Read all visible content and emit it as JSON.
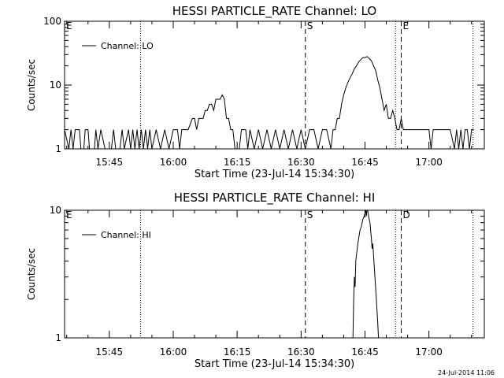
{
  "chart_data": [
    {
      "type": "line",
      "title": "HESSI PARTICLE_RATE Channel: LO",
      "xlabel": "Start Time (23-Jul-14 15:34:30)",
      "ylabel": "Counts/sec",
      "yscale": "log",
      "ylim": [
        1,
        100
      ],
      "xlim": [
        "15:34:30",
        "17:13:00"
      ],
      "x_ticks": [
        "15:45",
        "16:00",
        "16:15",
        "16:30",
        "16:45",
        "17:00"
      ],
      "y_ticks": [
        "1",
        "10",
        "100"
      ],
      "legend": {
        "position": "top-left",
        "entries": [
          "Channel: LO"
        ]
      },
      "markers": [
        {
          "label": "E",
          "time": "15:34:30",
          "style": "none"
        },
        {
          "label": "",
          "time": "15:52:20",
          "style": "dotted"
        },
        {
          "label": "S",
          "time": "16:31:00",
          "style": "dashed"
        },
        {
          "label": "",
          "time": "16:52:10",
          "style": "dotted"
        },
        {
          "label": "E",
          "time": "16:53:30",
          "style": "dashed"
        },
        {
          "label": "",
          "time": "17:10:20",
          "style": "dotted"
        }
      ],
      "series": [
        {
          "name": "Channel: LO",
          "points": [
            [
              "15:34:30",
              2
            ],
            [
              "15:35:30",
              1
            ],
            [
              "15:36:00",
              2
            ],
            [
              "15:36:30",
              1
            ],
            [
              "15:37:00",
              2
            ],
            [
              "15:38:00",
              2
            ],
            [
              "15:38:20",
              1
            ],
            [
              "15:39:00",
              1
            ],
            [
              "15:39:20",
              2
            ],
            [
              "15:40:00",
              2
            ],
            [
              "15:40:20",
              1
            ],
            [
              "15:41:30",
              1
            ],
            [
              "15:41:50",
              2
            ],
            [
              "15:42:20",
              1
            ],
            [
              "15:43:00",
              2
            ],
            [
              "15:44:00",
              1
            ],
            [
              "15:45:30",
              1
            ],
            [
              "15:46:00",
              2
            ],
            [
              "15:46:30",
              1
            ],
            [
              "15:47:30",
              1
            ],
            [
              "15:48:00",
              2
            ],
            [
              "15:48:30",
              1
            ],
            [
              "15:49:30",
              2
            ],
            [
              "15:50:00",
              1
            ],
            [
              "15:50:30",
              2
            ],
            [
              "15:51:00",
              1
            ],
            [
              "15:51:30",
              2
            ],
            [
              "15:52:00",
              1
            ],
            [
              "15:52:30",
              2
            ],
            [
              "15:53:00",
              1
            ],
            [
              "15:53:30",
              2
            ],
            [
              "15:54:00",
              1
            ],
            [
              "15:54:30",
              2
            ],
            [
              "15:55:00",
              1
            ],
            [
              "15:56:00",
              2
            ],
            [
              "15:57:00",
              1
            ],
            [
              "15:58:00",
              2
            ],
            [
              "15:59:00",
              1
            ],
            [
              "16:00:00",
              2
            ],
            [
              "16:01:00",
              2
            ],
            [
              "16:01:30",
              1
            ],
            [
              "16:02:00",
              2
            ],
            [
              "16:03:30",
              2
            ],
            [
              "16:04:30",
              3
            ],
            [
              "16:05:00",
              3
            ],
            [
              "16:05:30",
              2
            ],
            [
              "16:06:00",
              3
            ],
            [
              "16:07:00",
              3
            ],
            [
              "16:07:30",
              4
            ],
            [
              "16:08:00",
              4
            ],
            [
              "16:08:30",
              5
            ],
            [
              "16:09:00",
              5
            ],
            [
              "16:09:30",
              4
            ],
            [
              "16:10:00",
              6
            ],
            [
              "16:11:00",
              6
            ],
            [
              "16:11:30",
              7
            ],
            [
              "16:12:00",
              6
            ],
            [
              "16:12:30",
              3
            ],
            [
              "16:13:00",
              3
            ],
            [
              "16:13:30",
              2
            ],
            [
              "16:14:00",
              2
            ],
            [
              "16:14:30",
              1
            ],
            [
              "16:15:30",
              1
            ],
            [
              "16:16:00",
              2
            ],
            [
              "16:17:00",
              2
            ],
            [
              "16:17:30",
              1
            ],
            [
              "16:18:00",
              2
            ],
            [
              "16:19:00",
              1
            ],
            [
              "16:20:00",
              2
            ],
            [
              "16:21:00",
              1
            ],
            [
              "16:22:00",
              2
            ],
            [
              "16:23:00",
              1
            ],
            [
              "16:24:00",
              2
            ],
            [
              "16:25:00",
              1
            ],
            [
              "16:26:00",
              2
            ],
            [
              "16:27:00",
              1
            ],
            [
              "16:28:00",
              2
            ],
            [
              "16:29:00",
              1
            ],
            [
              "16:30:00",
              2
            ],
            [
              "16:31:00",
              1
            ],
            [
              "16:32:00",
              2
            ],
            [
              "16:33:00",
              2
            ],
            [
              "16:34:00",
              1
            ],
            [
              "16:35:00",
              2
            ],
            [
              "16:36:00",
              2
            ],
            [
              "16:37:00",
              1
            ],
            [
              "16:37:30",
              2
            ],
            [
              "16:38:00",
              2
            ],
            [
              "16:38:30",
              3
            ],
            [
              "16:39:00",
              3
            ],
            [
              "16:39:30",
              5
            ],
            [
              "16:40:00",
              7
            ],
            [
              "16:40:30",
              9
            ],
            [
              "16:41:00",
              11
            ],
            [
              "16:41:30",
              13
            ],
            [
              "16:42:00",
              15
            ],
            [
              "16:42:30",
              18
            ],
            [
              "16:43:00",
              20
            ],
            [
              "16:43:30",
              23
            ],
            [
              "16:44:00",
              25
            ],
            [
              "16:44:30",
              27
            ],
            [
              "16:45:00",
              27
            ],
            [
              "16:45:30",
              28
            ],
            [
              "16:46:00",
              26
            ],
            [
              "16:46:30",
              24
            ],
            [
              "16:47:00",
              20
            ],
            [
              "16:47:30",
              17
            ],
            [
              "16:48:00",
              12
            ],
            [
              "16:48:30",
              9
            ],
            [
              "16:49:00",
              6
            ],
            [
              "16:49:30",
              4
            ],
            [
              "16:50:00",
              5
            ],
            [
              "16:50:30",
              3
            ],
            [
              "16:51:00",
              3
            ],
            [
              "16:51:30",
              4
            ],
            [
              "16:52:00",
              3
            ],
            [
              "16:52:30",
              2
            ],
            [
              "16:53:00",
              2
            ],
            [
              "16:53:30",
              3
            ],
            [
              "16:54:00",
              2
            ],
            [
              "16:55:00",
              2
            ],
            [
              "16:56:00",
              2
            ],
            [
              "16:57:00",
              2
            ],
            [
              "16:58:00",
              2
            ],
            [
              "16:59:00",
              2
            ],
            [
              "17:00:00",
              2
            ],
            [
              "17:00:30",
              1
            ],
            [
              "17:01:00",
              2
            ],
            [
              "17:02:00",
              2
            ],
            [
              "17:03:00",
              2
            ],
            [
              "17:04:00",
              2
            ],
            [
              "17:05:00",
              2
            ],
            [
              "17:06:00",
              1
            ],
            [
              "17:06:30",
              2
            ],
            [
              "17:07:00",
              1
            ],
            [
              "17:07:30",
              2
            ],
            [
              "17:08:00",
              1
            ],
            [
              "17:08:30",
              2
            ],
            [
              "17:09:00",
              2
            ],
            [
              "17:09:30",
              1
            ],
            [
              "17:10:00",
              2
            ],
            [
              "17:10:30",
              2
            ]
          ]
        }
      ]
    },
    {
      "type": "line",
      "title": "HESSI PARTICLE_RATE Channel: HI",
      "xlabel": "Start Time (23-Jul-14 15:34:30)",
      "ylabel": "Counts/sec",
      "yscale": "log",
      "ylim": [
        1,
        10
      ],
      "xlim": [
        "15:34:30",
        "17:13:00"
      ],
      "x_ticks": [
        "15:45",
        "16:00",
        "16:15",
        "16:30",
        "16:45",
        "17:00"
      ],
      "y_ticks": [
        "1",
        "10"
      ],
      "legend": {
        "position": "top-left",
        "entries": [
          "Channel: HI"
        ]
      },
      "markers": [
        {
          "label": "E",
          "time": "15:34:30",
          "style": "none"
        },
        {
          "label": "",
          "time": "15:52:20",
          "style": "dotted"
        },
        {
          "label": "S",
          "time": "16:31:00",
          "style": "dashed"
        },
        {
          "label": "",
          "time": "16:52:10",
          "style": "dotted"
        },
        {
          "label": "D",
          "time": "16:53:30",
          "style": "dashed"
        },
        {
          "label": "",
          "time": "17:10:20",
          "style": "dotted"
        }
      ],
      "series": [
        {
          "name": "Channel: HI",
          "points": [
            [
              "16:42:10",
              1
            ],
            [
              "16:42:20",
              2
            ],
            [
              "16:42:30",
              3
            ],
            [
              "16:42:40",
              2.5
            ],
            [
              "16:42:50",
              4
            ],
            [
              "16:43:10",
              5
            ],
            [
              "16:43:30",
              6
            ],
            [
              "16:43:50",
              7
            ],
            [
              "16:44:10",
              7.5
            ],
            [
              "16:44:30",
              8.5
            ],
            [
              "16:44:50",
              9
            ],
            [
              "16:45:10",
              10
            ],
            [
              "16:45:20",
              9
            ],
            [
              "16:45:30",
              10.5
            ],
            [
              "16:45:50",
              9
            ],
            [
              "16:46:10",
              8
            ],
            [
              "16:46:30",
              6
            ],
            [
              "16:46:40",
              5
            ],
            [
              "16:46:50",
              5.5
            ],
            [
              "16:47:00",
              4.5
            ],
            [
              "16:47:20",
              3
            ],
            [
              "16:47:40",
              2
            ],
            [
              "16:48:00",
              1.3
            ],
            [
              "16:48:10",
              1
            ]
          ]
        }
      ]
    }
  ],
  "timestamp": "24-Jul-2014 11:06"
}
